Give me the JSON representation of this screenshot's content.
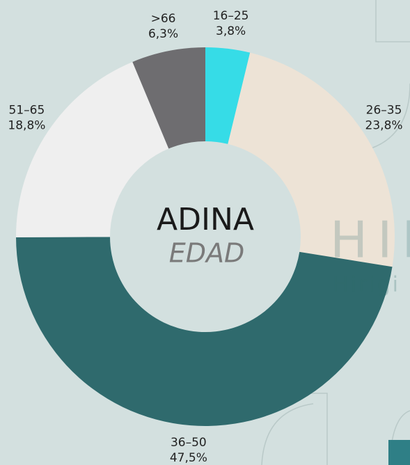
{
  "chart_data": {
    "type": "donut",
    "title": "ADINA",
    "subtitle": "EDAD",
    "watermark": [
      "HIR",
      "Hirigi"
    ],
    "categories": [
      "16–25",
      "26–35",
      "36–50",
      "51–65",
      ">66"
    ],
    "values": [
      3.8,
      23.8,
      47.5,
      18.8,
      6.3
    ],
    "value_labels": [
      "3,8%",
      "23,8%",
      "47,5%",
      "18,8%",
      "6,3%"
    ],
    "colors": [
      "#36dce7",
      "#ede3d6",
      "#2f6a6d",
      "#efefef",
      "#6e6d70"
    ]
  }
}
